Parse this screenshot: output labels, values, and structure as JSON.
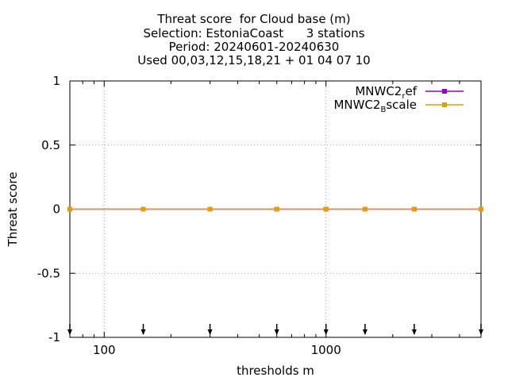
{
  "chart_data": {
    "type": "line",
    "title_lines": [
      "Threat score  for Cloud base (m)",
      "Selection: EstoniaCoast      3 stations",
      "Period: 20240601-20240630",
      "Used 00,03,12,15,18,21 + 01 04 07 10"
    ],
    "xlabel": "thresholds m",
    "ylabel": "Threat score",
    "xscale": "log",
    "xlim": [
      70,
      5000
    ],
    "ylim": [
      -1,
      1
    ],
    "yticks": [
      {
        "value": 1,
        "label": "1"
      },
      {
        "value": 0.5,
        "label": "0.5"
      },
      {
        "value": 0,
        "label": "0"
      },
      {
        "value": -0.5,
        "label": "-0.5"
      },
      {
        "value": -1,
        "label": "-1"
      }
    ],
    "xticks": [
      {
        "value": 100,
        "label": "100"
      },
      {
        "value": 1000,
        "label": "1000"
      }
    ],
    "grid": true,
    "legend_position": "top-right",
    "x": [
      70,
      150,
      300,
      600,
      1000,
      1500,
      2500,
      5000
    ],
    "series": [
      {
        "name_main": "MNWC2",
        "name_sub": "r",
        "name_rest": "ef",
        "color": "#9400d3",
        "values": [
          0,
          0,
          0,
          0,
          0,
          0,
          0,
          0
        ]
      },
      {
        "name_main": "MNWC2",
        "name_sub": "B",
        "name_rest": "scale",
        "color": "#e69f00",
        "values": [
          0,
          0,
          0,
          0,
          0,
          0,
          0,
          0
        ]
      }
    ]
  }
}
